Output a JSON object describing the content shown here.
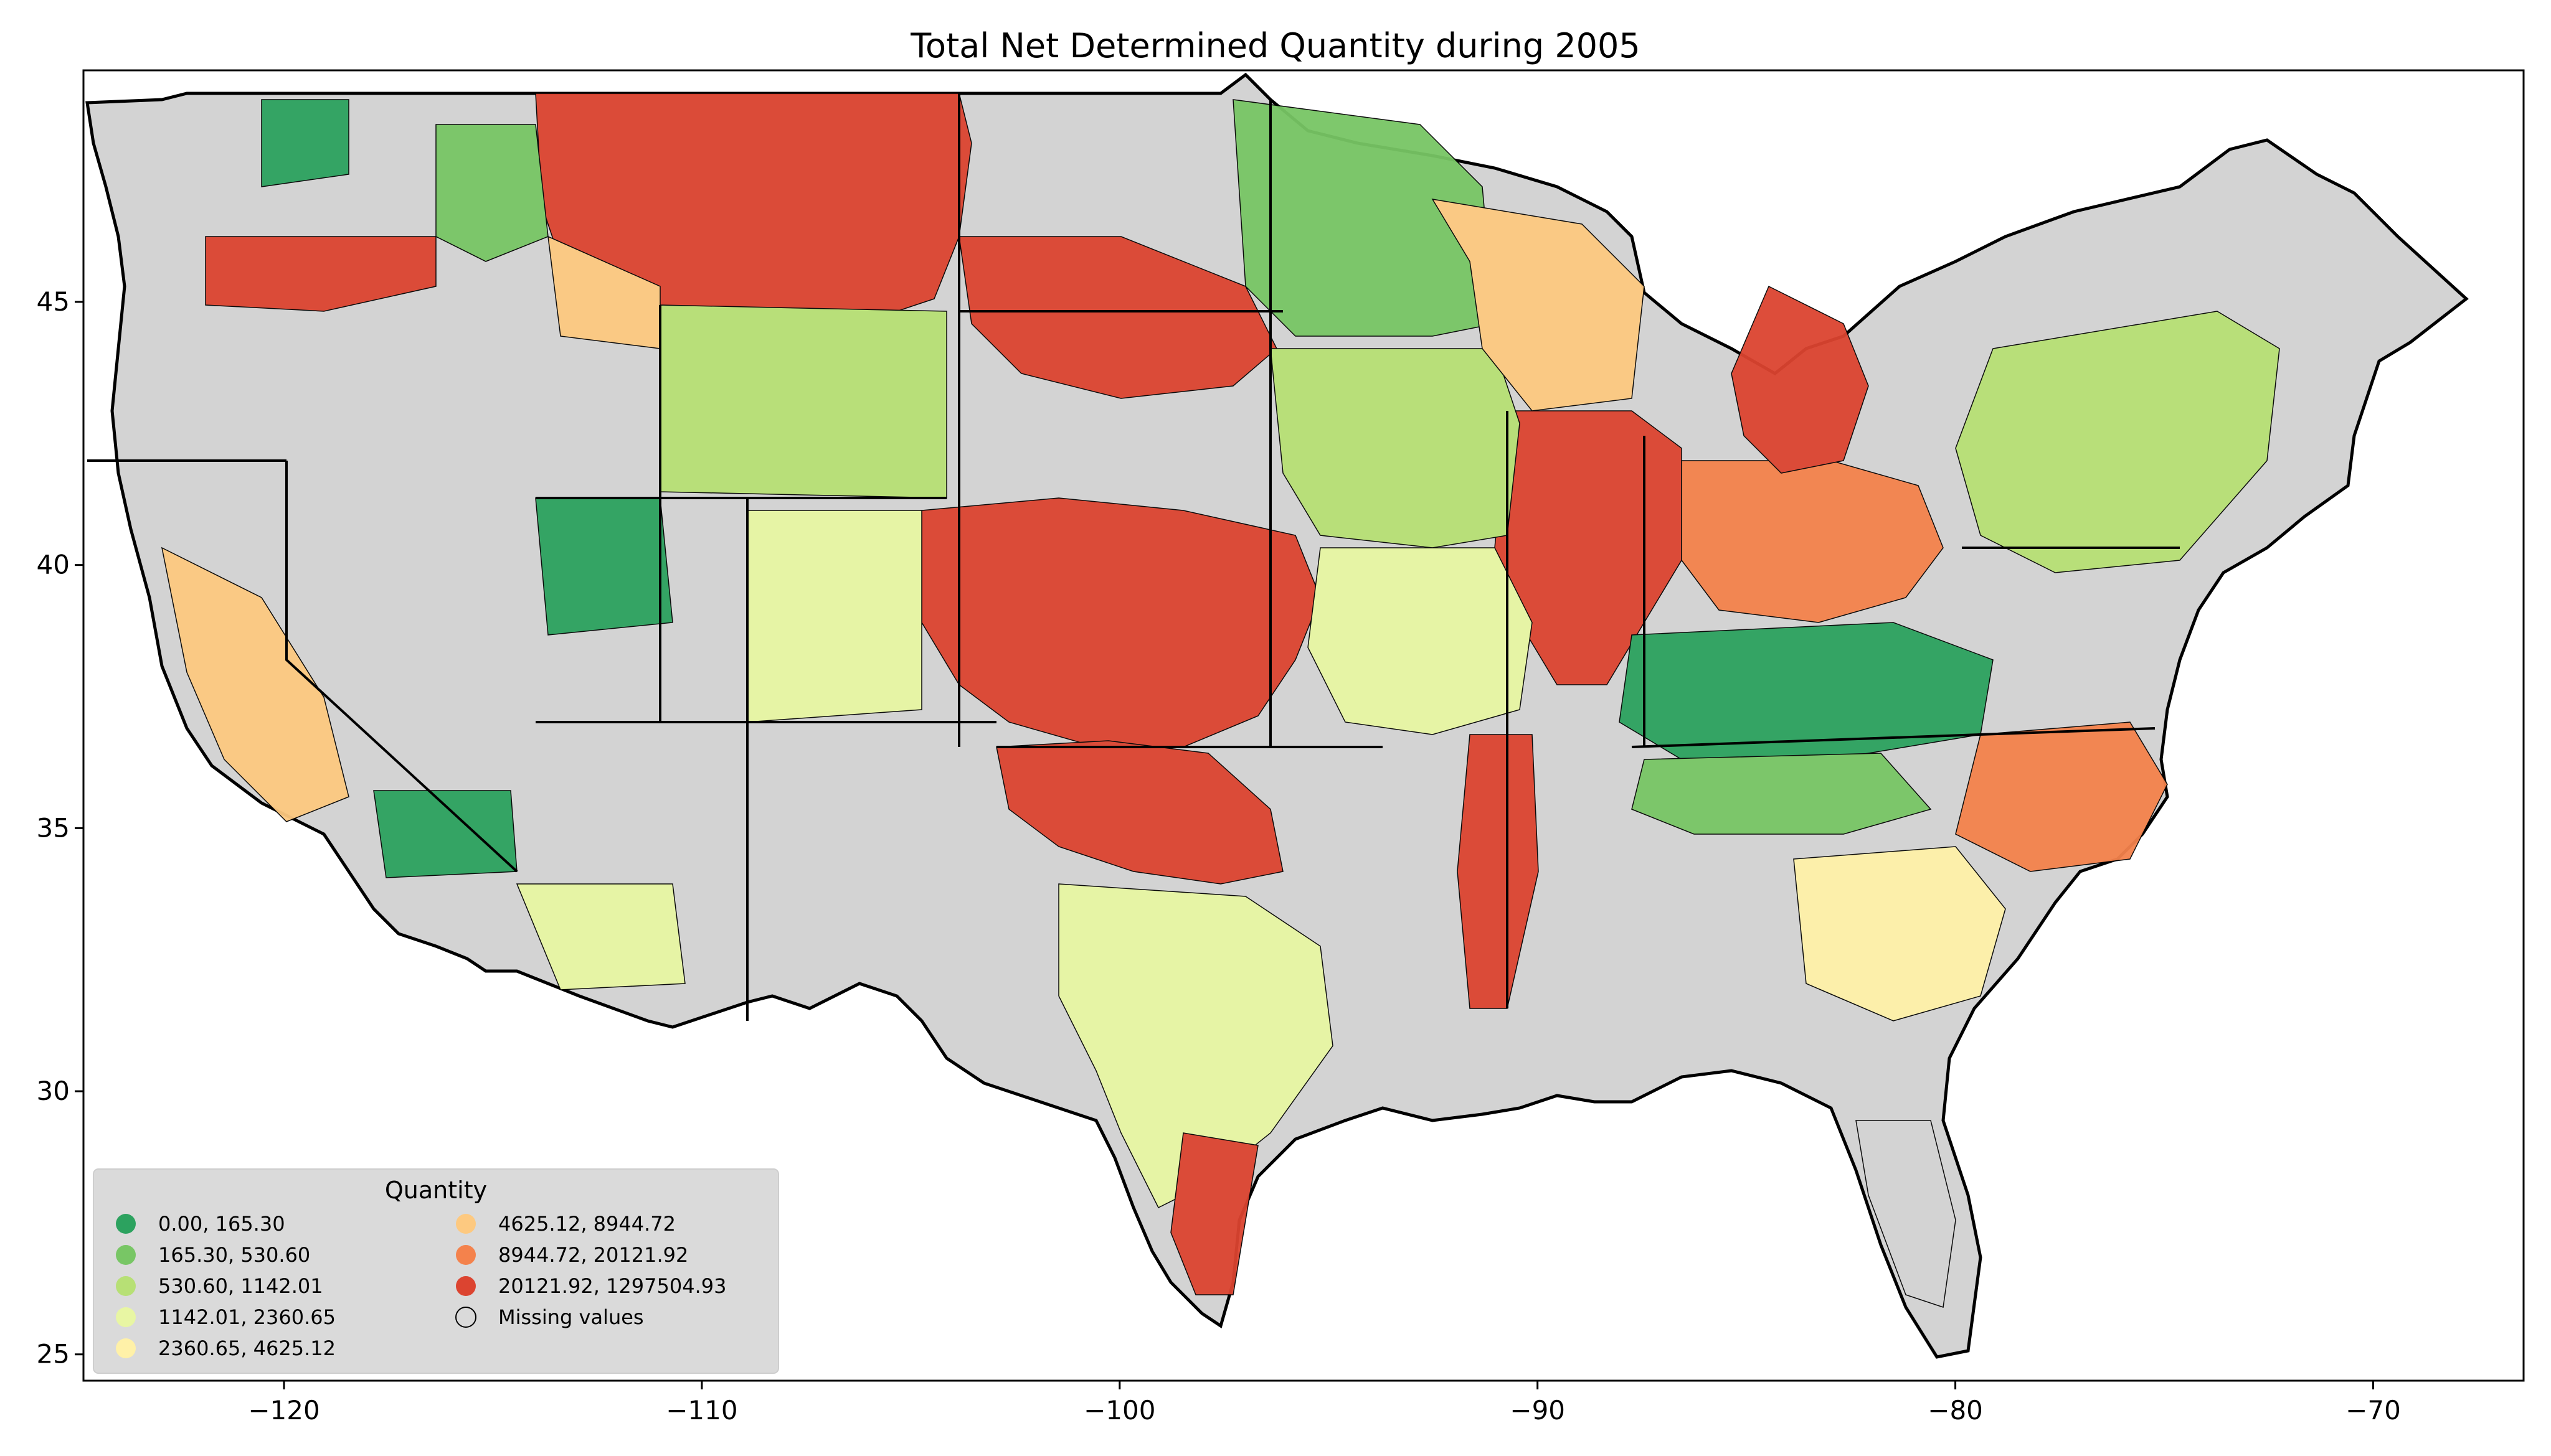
{
  "title": "Total Net Determined Quantity during 2005",
  "axes": {
    "x_ticks": [
      "−120",
      "−110",
      "−100",
      "−90",
      "−80",
      "−70"
    ],
    "y_ticks": [
      "45",
      "40",
      "35",
      "30",
      "25"
    ],
    "xlim": [
      -124.8,
      -66.4
    ],
    "ylim": [
      24.5,
      49.4
    ]
  },
  "legend": {
    "title": "Quantity",
    "items": [
      {
        "label": "0.00,    165.30",
        "color": "#2ca25f"
      },
      {
        "label": "165.30,    530.60",
        "color": "#78c665"
      },
      {
        "label": "530.60,    1142.01",
        "color": "#b7e075"
      },
      {
        "label": "1142.01,    2360.65",
        "color": "#e8f6a3"
      },
      {
        "label": "2360.65,    4625.12",
        "color": "#fff1a8"
      },
      {
        "label": "4625.12,    8944.72",
        "color": "#fdc980"
      },
      {
        "label": "8944.72,    20121.92",
        "color": "#f4824c"
      },
      {
        "label": "20121.92, 1297504.93",
        "color": "#dc4430"
      },
      {
        "label": "Missing values",
        "color": "#d3d3d3"
      }
    ]
  },
  "colors": {
    "missing": "#d3d3d3",
    "border": "#000000"
  }
}
